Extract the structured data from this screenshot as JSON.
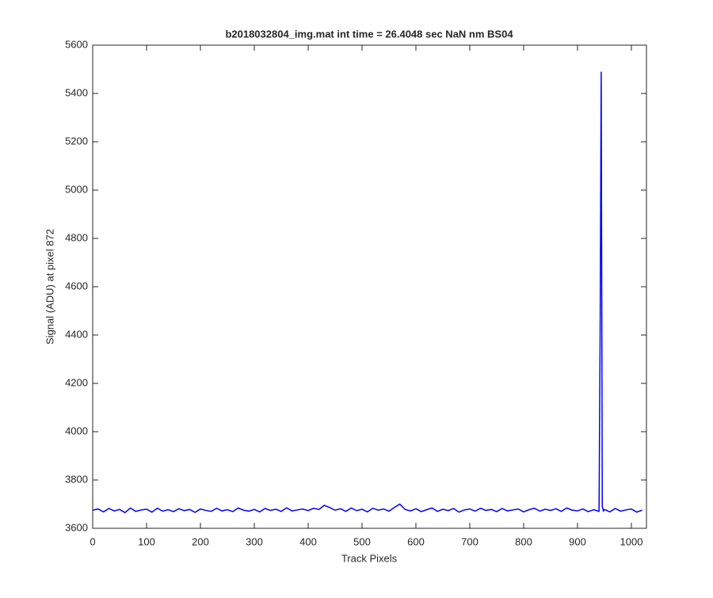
{
  "chart_data": {
    "type": "line",
    "title": "b2018032804_img.mat int time = 26.4048 sec  NaN nm BS04",
    "x_label": "Track Pixels",
    "y_label": "Signal (ADU) at pixel 872",
    "x": [
      0,
      10,
      20,
      30,
      40,
      50,
      60,
      70,
      80,
      90,
      100,
      110,
      120,
      130,
      140,
      150,
      160,
      170,
      180,
      190,
      200,
      210,
      220,
      230,
      240,
      250,
      260,
      270,
      280,
      290,
      300,
      310,
      320,
      330,
      340,
      350,
      360,
      370,
      380,
      390,
      400,
      410,
      420,
      430,
      440,
      450,
      460,
      470,
      480,
      490,
      500,
      510,
      520,
      530,
      540,
      550,
      560,
      570,
      580,
      590,
      600,
      610,
      620,
      630,
      640,
      650,
      660,
      670,
      680,
      690,
      700,
      710,
      720,
      730,
      740,
      750,
      760,
      770,
      780,
      790,
      800,
      810,
      820,
      830,
      840,
      850,
      860,
      870,
      880,
      890,
      900,
      910,
      920,
      930,
      940,
      942,
      944,
      946,
      948,
      950,
      960,
      970,
      980,
      990,
      1000,
      1010,
      1020
    ],
    "series": [
      {
        "name": "Signal",
        "color": "#0000ff",
        "values": [
          3675,
          3680,
          3668,
          3682,
          3672,
          3678,
          3665,
          3684,
          3670,
          3676,
          3679,
          3667,
          3683,
          3671,
          3677,
          3669,
          3681,
          3673,
          3678,
          3666,
          3680,
          3674,
          3670,
          3683,
          3672,
          3677,
          3669,
          3684,
          3675,
          3671,
          3678,
          3668,
          3682,
          3674,
          3679,
          3670,
          3685,
          3672,
          3676,
          3680,
          3673,
          3683,
          3678,
          3695,
          3686,
          3675,
          3681,
          3670,
          3684,
          3673,
          3679,
          3668,
          3683,
          3675,
          3680,
          3671,
          3686,
          3700,
          3678,
          3672,
          3681,
          3669,
          3677,
          3684,
          3670,
          3679,
          3673,
          3682,
          3667,
          3676,
          3680,
          3671,
          3683,
          3674,
          3678,
          3669,
          3682,
          3672,
          3676,
          3680,
          3668,
          3677,
          3683,
          3671,
          3679,
          3674,
          3681,
          3670,
          3684,
          3675,
          3672,
          3680,
          3669,
          3677,
          3670,
          4400,
          5490,
          3690,
          3672,
          3678,
          3668,
          3682,
          3671,
          3676,
          3680,
          3667,
          3675
        ]
      }
    ],
    "xlim": [
      0,
      1028
    ],
    "ylim": [
      3600,
      5600
    ],
    "xticks": [
      0,
      100,
      200,
      300,
      400,
      500,
      600,
      700,
      800,
      900,
      1000
    ],
    "yticks": [
      3600,
      3800,
      4000,
      4200,
      4400,
      4600,
      4800,
      5000,
      5200,
      5400,
      5600
    ]
  }
}
